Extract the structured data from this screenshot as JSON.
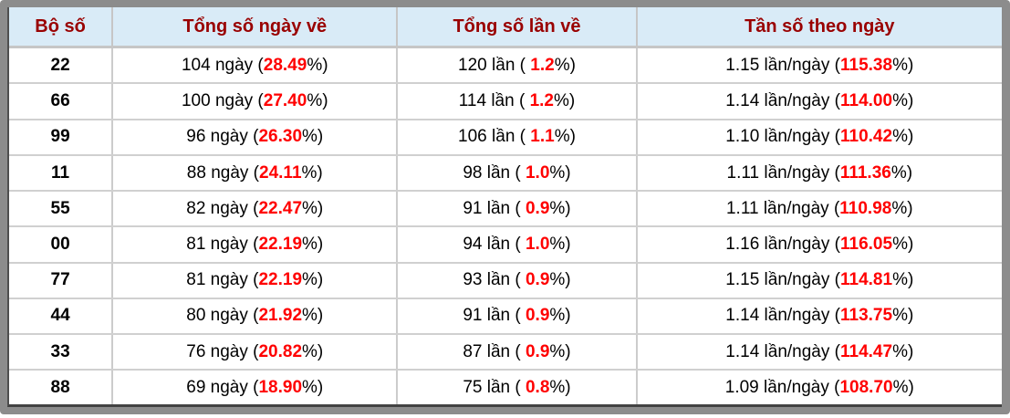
{
  "table": {
    "columns": [
      {
        "label": "Bộ số"
      },
      {
        "label": "Tổng số ngày về"
      },
      {
        "label": "Tổng số lần về"
      },
      {
        "label": "Tần số theo ngày"
      }
    ],
    "pct_suffix": "%)",
    "rows": [
      {
        "pair": "22",
        "days_prefix": "104 ngày (",
        "days_pct": "28.49",
        "times_prefix": "120 lần ( ",
        "times_pct": "1.2",
        "freq_prefix": "1.15 lần/ngày (",
        "freq_pct": "115.38"
      },
      {
        "pair": "66",
        "days_prefix": "100 ngày (",
        "days_pct": "27.40",
        "times_prefix": "114 lần ( ",
        "times_pct": "1.2",
        "freq_prefix": "1.14 lần/ngày (",
        "freq_pct": "114.00"
      },
      {
        "pair": "99",
        "days_prefix": "96 ngày (",
        "days_pct": "26.30",
        "times_prefix": "106 lần ( ",
        "times_pct": "1.1",
        "freq_prefix": "1.10 lần/ngày (",
        "freq_pct": "110.42"
      },
      {
        "pair": "11",
        "days_prefix": "88 ngày (",
        "days_pct": "24.11",
        "times_prefix": "98 lần ( ",
        "times_pct": "1.0",
        "freq_prefix": "1.11 lần/ngày (",
        "freq_pct": "111.36"
      },
      {
        "pair": "55",
        "days_prefix": "82 ngày (",
        "days_pct": "22.47",
        "times_prefix": "91 lần ( ",
        "times_pct": "0.9",
        "freq_prefix": "1.11 lần/ngày (",
        "freq_pct": "110.98"
      },
      {
        "pair": "00",
        "days_prefix": "81 ngày (",
        "days_pct": "22.19",
        "times_prefix": "94 lần ( ",
        "times_pct": "1.0",
        "freq_prefix": "1.16 lần/ngày (",
        "freq_pct": "116.05"
      },
      {
        "pair": "77",
        "days_prefix": "81 ngày (",
        "days_pct": "22.19",
        "times_prefix": "93 lần ( ",
        "times_pct": "0.9",
        "freq_prefix": "1.15 lần/ngày (",
        "freq_pct": "114.81"
      },
      {
        "pair": "44",
        "days_prefix": "80 ngày (",
        "days_pct": "21.92",
        "times_prefix": "91 lần ( ",
        "times_pct": "0.9",
        "freq_prefix": "1.14 lần/ngày (",
        "freq_pct": "113.75"
      },
      {
        "pair": "33",
        "days_prefix": "76 ngày (",
        "days_pct": "20.82",
        "times_prefix": "87 lần ( ",
        "times_pct": "0.9",
        "freq_prefix": "1.14 lần/ngày (",
        "freq_pct": "114.47"
      },
      {
        "pair": "88",
        "days_prefix": "69 ngày (",
        "days_pct": "18.90",
        "times_prefix": "75 lần ( ",
        "times_pct": "0.8",
        "freq_prefix": "1.09 lần/ngày (",
        "freq_pct": "108.70"
      }
    ]
  },
  "colors": {
    "frame_gray": "#8c8c8c",
    "header_bg": "#d9ebf7",
    "header_text": "#990000",
    "highlight_red": "#ff0000",
    "grid_line": "#cccccc"
  },
  "chart_data": {
    "type": "table",
    "columns": [
      "Bộ số",
      "Tổng số ngày về",
      "Tổng số lần về",
      "Tần số theo ngày"
    ],
    "rows": [
      [
        "22",
        "104 ngày (28.49%)",
        "120 lần ( 1.2%)",
        "1.15 lần/ngày (115.38%)"
      ],
      [
        "66",
        "100 ngày (27.40%)",
        "114 lần ( 1.2%)",
        "1.14 lần/ngày (114.00%)"
      ],
      [
        "99",
        "96 ngày (26.30%)",
        "106 lần ( 1.1%)",
        "1.10 lần/ngày (110.42%)"
      ],
      [
        "11",
        "88 ngày (24.11%)",
        "98 lần ( 1.0%)",
        "1.11 lần/ngày (111.36%)"
      ],
      [
        "55",
        "82 ngày (22.47%)",
        "91 lần ( 0.9%)",
        "1.11 lần/ngày (110.98%)"
      ],
      [
        "00",
        "81 ngày (22.19%)",
        "94 lần ( 1.0%)",
        "1.16 lần/ngày (116.05%)"
      ],
      [
        "77",
        "81 ngày (22.19%)",
        "93 lần ( 0.9%)",
        "1.15 lần/ngày (114.81%)"
      ],
      [
        "44",
        "80 ngày (21.92%)",
        "91 lần ( 0.9%)",
        "1.14 lần/ngày (113.75%)"
      ],
      [
        "33",
        "76 ngày (20.82%)",
        "87 lần ( 0.9%)",
        "1.14 lần/ngày (114.47%)"
      ],
      [
        "88",
        "69 ngày (18.90%)",
        "75 lần ( 0.8%)",
        "1.09 lần/ngày (108.70%)"
      ]
    ]
  }
}
